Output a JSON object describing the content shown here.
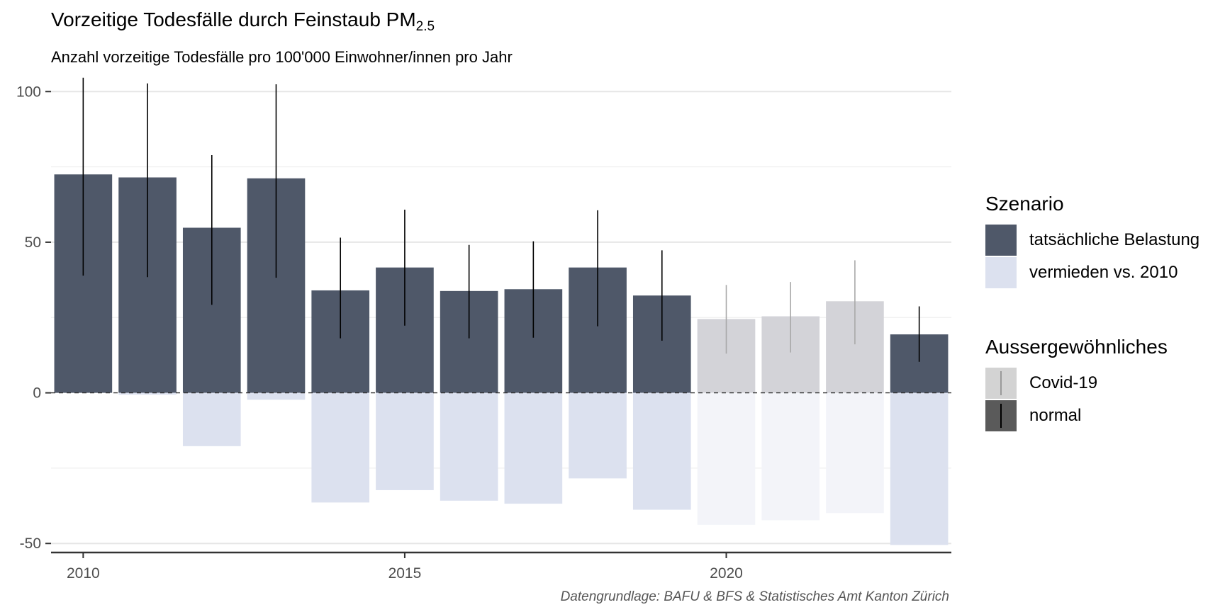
{
  "title": {
    "main": "Vorzeitige Todesfälle durch Feinstaub PM",
    "sub": "2.5"
  },
  "subtitle": "Anzahl vorzeitige Todesfälle pro 100'000 Einwohner/innen pro Jahr",
  "caption": "Datengrundlage: BAFU & BFS & Statistisches Amt Kanton Zürich",
  "legend": {
    "scenario": {
      "title": "Szenario",
      "items": [
        {
          "label": "tatsächliche Belastung",
          "color": "#4f5869"
        },
        {
          "label": "vermieden vs. 2010",
          "color": "#dce1ef"
        }
      ]
    },
    "extraordinary": {
      "title": "Aussergewöhnliches",
      "items": [
        {
          "label": "Covid-19",
          "color": "#d3d3d3",
          "line": "#9a9a9a"
        },
        {
          "label": "normal",
          "color": "#5a5a5a",
          "line": "#000000"
        }
      ]
    }
  },
  "chart_data": {
    "type": "bar",
    "x": [
      2010,
      2011,
      2012,
      2013,
      2014,
      2015,
      2016,
      2017,
      2018,
      2019,
      2020,
      2021,
      2022,
      2023
    ],
    "series": [
      {
        "name": "tatsächliche Belastung",
        "values": [
          72.5,
          71.5,
          54.8,
          71.2,
          34.0,
          41.6,
          33.8,
          34.4,
          41.6,
          32.3,
          24.5,
          25.4,
          30.4,
          19.4
        ]
      },
      {
        "name": "vermieden vs. 2010",
        "values": [
          0,
          -0.6,
          -17.7,
          -2.3,
          -36.4,
          -32.3,
          -35.8,
          -36.8,
          -28.4,
          -38.8,
          -43.8,
          -42.3,
          -39.9,
          -50.5
        ]
      }
    ],
    "error_low": [
      38.9,
      38.4,
      29.2,
      38.2,
      18.1,
      22.3,
      18.1,
      18.3,
      22.1,
      17.3,
      13.0,
      13.4,
      16.1,
      10.3
    ],
    "error_high": [
      104.6,
      102.7,
      78.9,
      102.4,
      51.5,
      60.8,
      49.1,
      50.3,
      60.6,
      47.3,
      35.8,
      36.8,
      44.0,
      28.7
    ],
    "covid_years": [
      2020,
      2021,
      2022
    ],
    "ylim": [
      -53,
      105
    ],
    "yticks": [
      -50,
      0,
      50,
      100
    ],
    "xticks": [
      2010,
      2015,
      2020
    ],
    "grid": true,
    "legend_position": "right",
    "colors": {
      "actual_normal": "#4f5869",
      "avoided_normal": "#dce1ef",
      "actual_covid": "#d3d3d8",
      "avoided_covid": "#f3f4f9",
      "errorbar_normal": "#000000",
      "errorbar_covid": "#a8a8a8"
    }
  }
}
